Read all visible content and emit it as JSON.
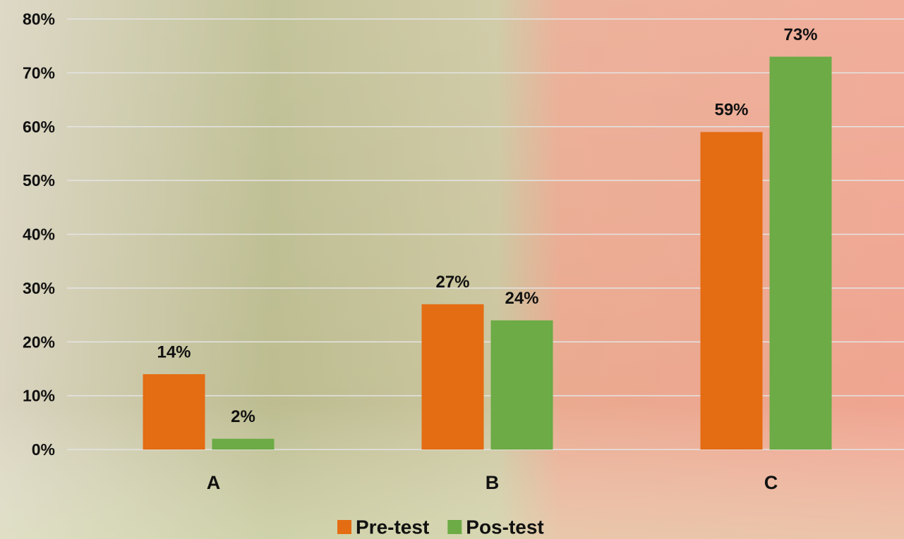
{
  "chart_data": {
    "type": "bar",
    "categories": [
      "A",
      "B",
      "C"
    ],
    "series": [
      {
        "name": "Pre-test",
        "color": "#e46c13",
        "values": [
          14,
          27,
          59
        ],
        "value_labels": [
          "14%",
          "27%",
          "59%"
        ]
      },
      {
        "name": "Pos-test",
        "color": "#6cab45",
        "values": [
          2,
          24,
          73
        ],
        "value_labels": [
          "2%",
          "24%",
          "73%"
        ]
      }
    ],
    "ylim": [
      0,
      80
    ],
    "yticks": [
      {
        "value": 0,
        "label": "0%"
      },
      {
        "value": 10,
        "label": "10%"
      },
      {
        "value": 20,
        "label": "20%"
      },
      {
        "value": 30,
        "label": "30%"
      },
      {
        "value": 40,
        "label": "40%"
      },
      {
        "value": 50,
        "label": "50%"
      },
      {
        "value": 60,
        "label": "60%"
      },
      {
        "value": 70,
        "label": "70%"
      },
      {
        "value": 80,
        "label": "80%"
      }
    ],
    "grid": true,
    "legend": "bottom"
  }
}
